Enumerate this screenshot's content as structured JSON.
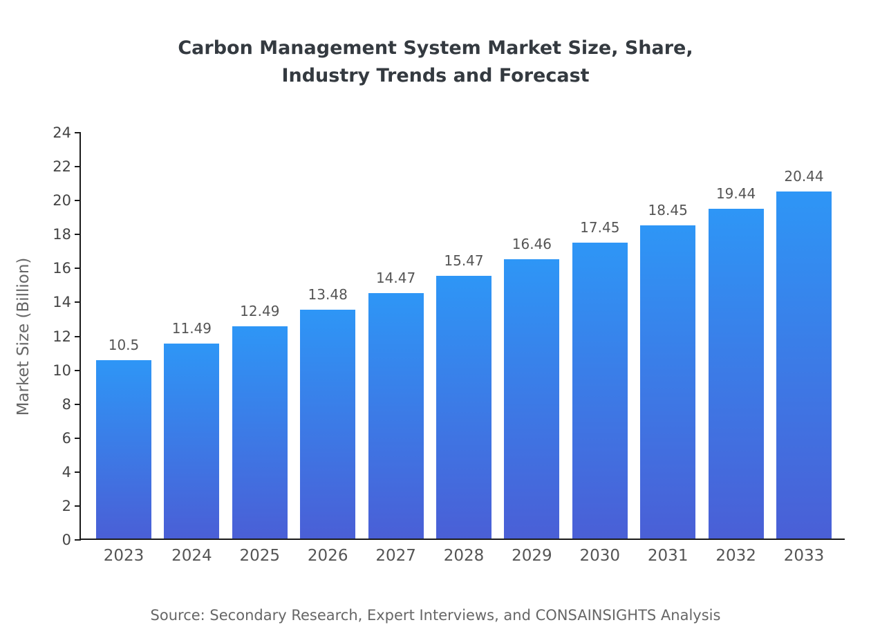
{
  "chart_data": {
    "type": "bar",
    "title_lines": [
      "Carbon Management System Market Size, Share,",
      "Industry Trends and Forecast"
    ],
    "title": "Carbon Management System Market Size, Share, Industry Trends and Forecast",
    "categories": [
      "2023",
      "2024",
      "2025",
      "2026",
      "2027",
      "2028",
      "2029",
      "2030",
      "2031",
      "2032",
      "2033"
    ],
    "values": [
      10.5,
      11.49,
      12.49,
      13.48,
      14.47,
      15.47,
      16.46,
      17.45,
      18.45,
      19.44,
      20.44
    ],
    "data_labels": [
      "10.5",
      "11.49",
      "12.49",
      "13.48",
      "14.47",
      "15.47",
      "16.46",
      "17.45",
      "18.45",
      "19.44",
      "20.44"
    ],
    "xlabel": "",
    "ylabel": "Market Size (Billion)",
    "ylim": [
      0,
      24
    ],
    "ytick_step": 2,
    "grid": false,
    "legend_position": "none",
    "bar_gradient_top": "#2e96f6",
    "bar_gradient_bottom": "#4a5fd6"
  },
  "footer": {
    "source_text": "Source: Secondary Research, Expert Interviews, and CONSAINSIGHTS Analysis"
  }
}
